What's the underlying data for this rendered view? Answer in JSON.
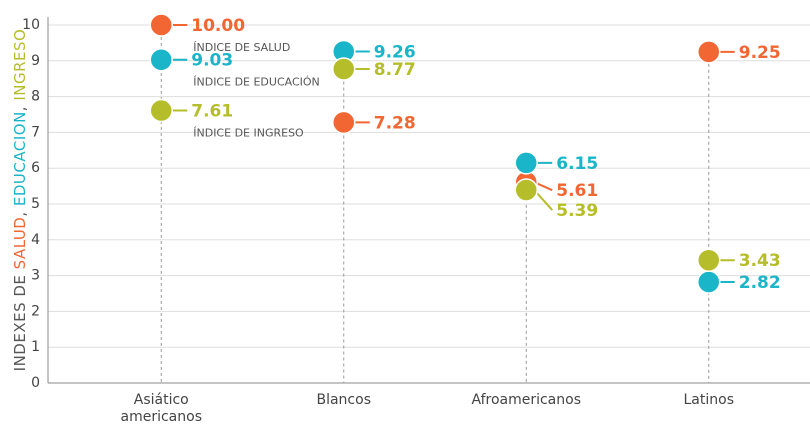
{
  "chart_data": {
    "type": "dot",
    "y_label": [
      "INDEXES DE ",
      "SALUD",
      ", ",
      "EDUCACION",
      ", ",
      "INGRESO"
    ],
    "categories": [
      "Asiático americanos",
      "Blancos",
      "Afroamericanos",
      "Latinos"
    ],
    "series": [
      {
        "name": "ÍNDICE DE SALUD",
        "color": "#f26633",
        "values": [
          10.0,
          7.28,
          5.61,
          9.25
        ],
        "value_labels": [
          "10.00",
          "7.28",
          "5.61",
          "9.25"
        ]
      },
      {
        "name": "ÍNDICE DE EDUCACIÓN",
        "color": "#1ab5c9",
        "values": [
          9.03,
          9.26,
          6.15,
          2.82
        ],
        "value_labels": [
          "9.03",
          "9.26",
          "6.15",
          "2.82"
        ]
      },
      {
        "name": "ÍNDICE DE INGRESO",
        "color": "#b5be2a",
        "values": [
          7.61,
          8.77,
          5.39,
          3.43
        ],
        "value_labels": [
          "7.61",
          "8.77",
          "5.39",
          "3.43"
        ]
      }
    ],
    "ylim": [
      0,
      10
    ],
    "yticks": [
      0,
      1,
      2,
      3,
      4,
      5,
      6,
      7,
      8,
      9,
      10
    ],
    "grid": true
  }
}
